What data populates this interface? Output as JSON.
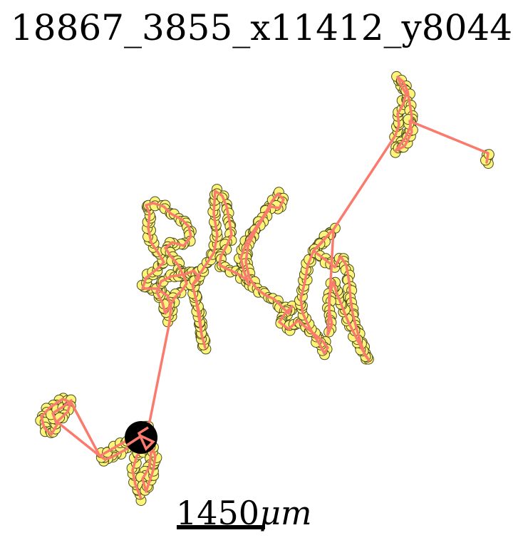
{
  "title": "18867_3855_x11412_y8044",
  "scalebar": {
    "value": "1450",
    "unit": "μm"
  },
  "colors": {
    "track": "#fa7a6e",
    "marker_fill": "#fdf57a",
    "marker_edge": "#4a4a1e",
    "start_marker": "#000000"
  }
}
